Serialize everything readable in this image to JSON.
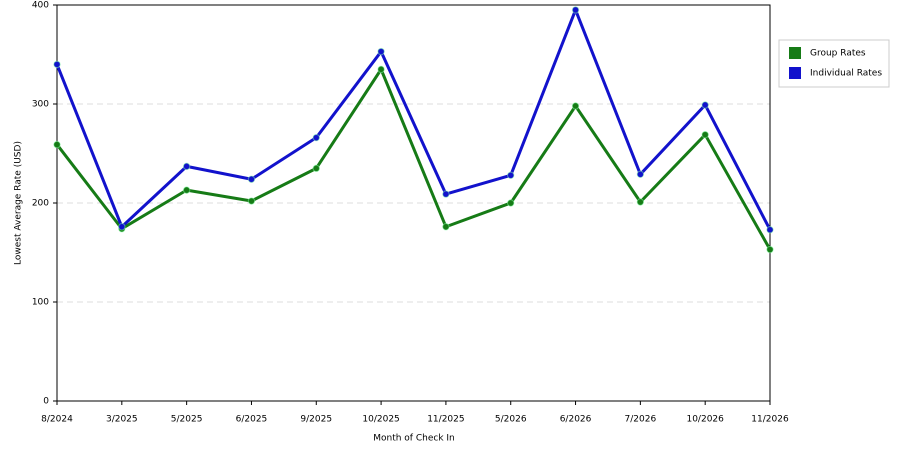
{
  "chart_data": {
    "type": "line",
    "x_label": "Month of Check In",
    "y_label": "Lowest Average Rate (USD)",
    "categories": [
      "8/2024",
      "3/2025",
      "5/2025",
      "6/2025",
      "9/2025",
      "10/2025",
      "11/2025",
      "5/2026",
      "6/2026",
      "7/2026",
      "10/2026",
      "11/2026"
    ],
    "series": [
      {
        "name": "Group Rates",
        "color": "#167b16",
        "values": [
          259,
          174,
          213,
          202,
          235,
          335,
          176,
          200,
          298,
          201,
          269,
          153
        ]
      },
      {
        "name": "Individual Rates",
        "color": "#1212cc",
        "values": [
          340,
          176,
          237,
          224,
          266,
          353,
          209,
          228,
          395,
          229,
          299,
          173
        ]
      }
    ],
    "ylim": [
      0,
      400
    ],
    "yticks": [
      0,
      100,
      200,
      300,
      400
    ],
    "grid": true,
    "legend": "right"
  }
}
